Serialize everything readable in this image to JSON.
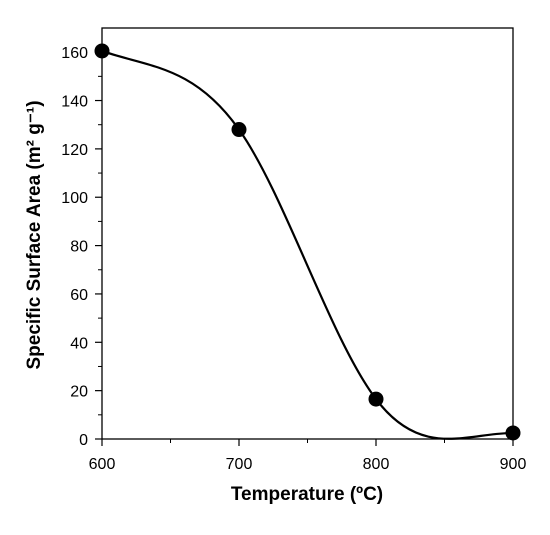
{
  "chart_data": {
    "type": "line",
    "xlabel": "Temperature (ºC)",
    "ylabel": "Specific Surface Area (m² g⁻¹)",
    "xlim": [
      600,
      900
    ],
    "ylim": [
      0,
      170
    ],
    "xticks": [
      600,
      700,
      800,
      900
    ],
    "yticks": [
      0,
      20,
      40,
      60,
      80,
      100,
      120,
      140,
      160
    ],
    "yminor_step": 10,
    "xminor_step": 50,
    "grid": false,
    "legend": "none",
    "line_style": "smoothed",
    "marker": "filled-circle",
    "colors": {
      "line": "#000000",
      "marker": "#000000",
      "axes": "#000000"
    },
    "x": [
      600,
      700,
      800,
      900
    ],
    "y": [
      160.5,
      128,
      16.5,
      2.5
    ]
  }
}
